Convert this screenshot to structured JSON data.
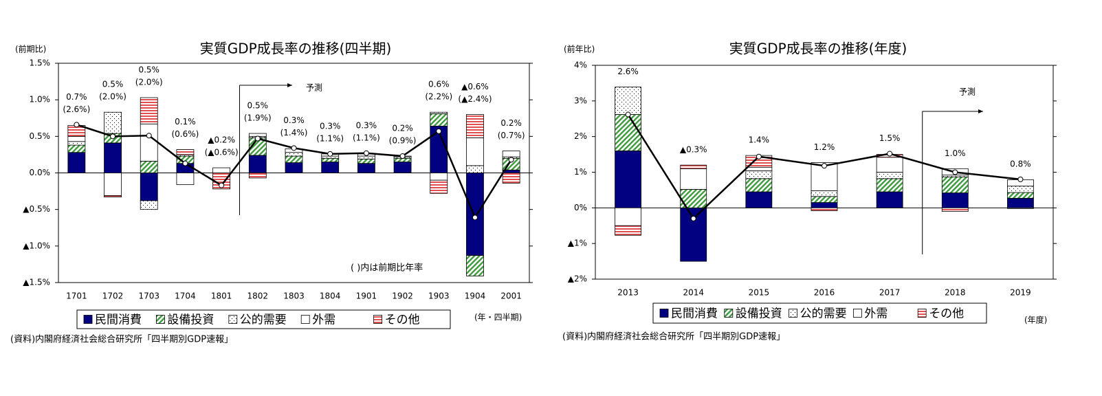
{
  "chart_data": [
    {
      "type": "bar",
      "stacked": true,
      "title": "実質GDP成長率の推移(四半期)",
      "y_unit_label": "(前期比)",
      "x_unit_label": "(年・四半期)",
      "source": "(資料)内閣府経済社会総合研究所「四半期別GDP速報」",
      "note": "(   )内は前期比年率",
      "forecast_label": "予測",
      "categories": [
        "1701",
        "1702",
        "1703",
        "1704",
        "1801",
        "1802",
        "1803",
        "1804",
        "1901",
        "1902",
        "1903",
        "1904",
        "2001"
      ],
      "ylim": [
        -1.5,
        1.5
      ],
      "yticks": [
        {
          "value": -1.5,
          "label": "▲1.5%"
        },
        {
          "value": -1.0,
          "label": "▲1.0%"
        },
        {
          "value": -0.5,
          "label": "▲0.5%"
        },
        {
          "value": 0.0,
          "label": "0.0%"
        },
        {
          "value": 0.5,
          "label": "0.5%"
        },
        {
          "value": 1.0,
          "label": "1.0%"
        },
        {
          "value": 1.5,
          "label": "1.5%"
        }
      ],
      "series": [
        {
          "name": "民間消費",
          "color": "#000080",
          "pattern": "solid",
          "values": [
            0.28,
            0.41,
            -0.38,
            0.13,
            0,
            0.24,
            0.14,
            0.15,
            0.13,
            0.15,
            0.64,
            -1.13,
            0.04
          ]
        },
        {
          "name": "設備投資",
          "color": "#3c9a3c",
          "pattern": "diagonal",
          "values": [
            0.1,
            0.13,
            0.16,
            0.1,
            0,
            0.24,
            0.09,
            0.05,
            0.06,
            0.05,
            0.17,
            -0.28,
            0.16
          ]
        },
        {
          "name": "公的需要",
          "color": "#000000",
          "pattern": "dots",
          "values": [
            0.05,
            0.29,
            -0.12,
            0.02,
            0,
            0.02,
            0.05,
            0.03,
            0.04,
            0.02,
            0.02,
            0.1,
            0.02
          ]
        },
        {
          "name": "外需",
          "color": "#ffffff",
          "pattern": "solid",
          "values": [
            0.07,
            -0.31,
            0.51,
            -0.16,
            0.07,
            0.04,
            0.05,
            0.03,
            0.03,
            0.01,
            -0.1,
            0.38,
            0.08
          ]
        },
        {
          "name": "その他",
          "color": "#e05050",
          "pattern": "horizontal",
          "values": [
            0.15,
            -0.02,
            0.36,
            0.07,
            -0.22,
            -0.07,
            0,
            0,
            0,
            0,
            -0.18,
            0.32,
            -0.14
          ]
        },
        {
          "type": "line",
          "color": "#000000",
          "values": [
            0.66,
            0.5,
            0.51,
            0.13,
            -0.17,
            0.47,
            0.34,
            0.26,
            0.27,
            0.23,
            0.57,
            -0.61,
            0.18
          ],
          "value_labels": [
            "0.7%",
            "0.5%",
            "0.5%",
            "0.1%",
            "▲0.2%",
            "0.5%",
            "0.3%",
            "0.3%",
            "0.3%",
            "0.2%",
            "0.6%",
            "▲0.6%",
            "0.2%"
          ],
          "annual_labels": [
            "(2.6%)",
            "(2.0%)",
            "(2.0%)",
            "(0.6%)",
            "(▲0.6%)",
            "(1.9%)",
            "(1.4%)",
            "(1.1%)",
            "(1.1%)",
            "(0.9%)",
            "(2.2%)",
            "(▲2.4%)",
            "(0.7%)"
          ]
        }
      ]
    },
    {
      "type": "bar",
      "stacked": true,
      "title": "実質GDP成長率の推移(年度)",
      "y_unit_label": "(前年比)",
      "x_unit_label": "(年度)",
      "source": "(資料)内閣府経済社会総合研究所「四半期別GDP速報」",
      "forecast_label": "予測",
      "categories": [
        "2013",
        "2014",
        "2015",
        "2016",
        "2017",
        "2018",
        "2019"
      ],
      "ylim": [
        -2,
        4
      ],
      "yticks": [
        {
          "value": -2,
          "label": "▲2%"
        },
        {
          "value": -1,
          "label": "▲1%"
        },
        {
          "value": 0,
          "label": "0%"
        },
        {
          "value": 1,
          "label": "1%"
        },
        {
          "value": 2,
          "label": "2%"
        },
        {
          "value": 3,
          "label": "3%"
        },
        {
          "value": 4,
          "label": "4%"
        }
      ],
      "series": [
        {
          "name": "民間消費",
          "color": "#000080",
          "pattern": "solid",
          "values": [
            1.6,
            -1.5,
            0.45,
            0.15,
            0.45,
            0.42,
            0.27
          ]
        },
        {
          "name": "設備投資",
          "color": "#3c9a3c",
          "pattern": "diagonal",
          "values": [
            1.02,
            0.52,
            0.37,
            0.17,
            0.37,
            0.45,
            0.16
          ]
        },
        {
          "name": "公的需要",
          "color": "#000000",
          "pattern": "dots",
          "values": [
            0.77,
            0,
            0.22,
            0.16,
            0.18,
            0.05,
            0.18
          ]
        },
        {
          "name": "外需",
          "color": "#ffffff",
          "pattern": "solid",
          "values": [
            -0.5,
            0.58,
            0.1,
            0.79,
            0.42,
            0.18,
            0.18
          ]
        },
        {
          "name": "その他",
          "color": "#e05050",
          "pattern": "horizontal",
          "values": [
            -0.27,
            0.1,
            0.33,
            -0.08,
            0.08,
            -0.1,
            -0.02
          ]
        },
        {
          "type": "line",
          "color": "#000000",
          "values": [
            2.62,
            -0.3,
            1.44,
            1.18,
            1.52,
            1.0,
            0.8
          ],
          "value_labels": [
            "2.6%",
            "▲0.3%",
            "1.4%",
            "1.2%",
            "1.5%",
            "1.0%",
            "0.8%"
          ]
        }
      ]
    }
  ]
}
